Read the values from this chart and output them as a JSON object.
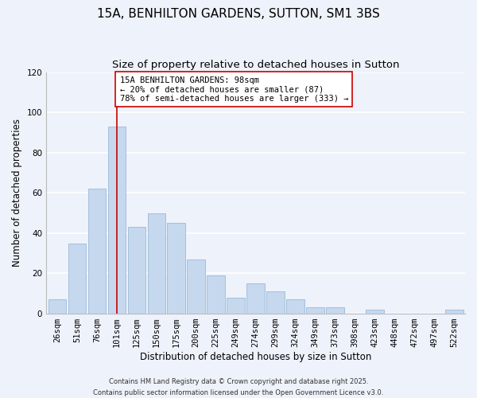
{
  "title": "15A, BENHILTON GARDENS, SUTTON, SM1 3BS",
  "subtitle": "Size of property relative to detached houses in Sutton",
  "xlabel": "Distribution of detached houses by size in Sutton",
  "ylabel": "Number of detached properties",
  "bar_color": "#c5d8ee",
  "bar_edge_color": "#9bbad8",
  "categories": [
    "26sqm",
    "51sqm",
    "76sqm",
    "101sqm",
    "125sqm",
    "150sqm",
    "175sqm",
    "200sqm",
    "225sqm",
    "249sqm",
    "274sqm",
    "299sqm",
    "324sqm",
    "349sqm",
    "373sqm",
    "398sqm",
    "423sqm",
    "448sqm",
    "472sqm",
    "497sqm",
    "522sqm"
  ],
  "values": [
    7,
    35,
    62,
    93,
    43,
    50,
    45,
    27,
    19,
    8,
    15,
    11,
    7,
    3,
    3,
    0,
    2,
    0,
    0,
    0,
    2
  ],
  "ylim": [
    0,
    120
  ],
  "yticks": [
    0,
    20,
    40,
    60,
    80,
    100,
    120
  ],
  "marker_bin_index": 3,
  "marker_line_color": "#cc0000",
  "annotation_title": "15A BENHILTON GARDENS: 98sqm",
  "annotation_line1": "← 20% of detached houses are smaller (87)",
  "annotation_line2": "78% of semi-detached houses are larger (333) →",
  "footer1": "Contains HM Land Registry data © Crown copyright and database right 2025.",
  "footer2": "Contains public sector information licensed under the Open Government Licence v3.0.",
  "background_color": "#eef2fb",
  "grid_color": "#ffffff",
  "title_fontsize": 11,
  "subtitle_fontsize": 9.5,
  "axis_label_fontsize": 8.5,
  "tick_fontsize": 7.5,
  "annotation_fontsize": 7.5,
  "footer_fontsize": 6.0
}
